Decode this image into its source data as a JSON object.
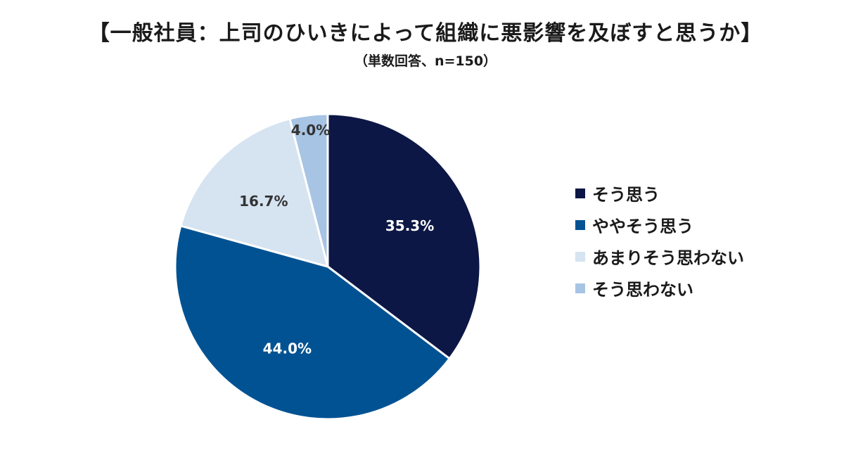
{
  "chart_data": {
    "type": "pie",
    "title": "【一般社員：上司のひいきによって組織に悪影響を及ぼすと思うか】",
    "subtitle": "（単数回答、n=150）",
    "categories": [
      "そう思う",
      "ややそう思う",
      "あまりそう思わない",
      "そう思わない"
    ],
    "values": [
      35.3,
      44.0,
      16.7,
      4.0
    ],
    "value_labels": [
      "35.3%",
      "44.0%",
      "16.7%",
      "4.0%"
    ],
    "colors": [
      "#0c1745",
      "#005293",
      "#d6e3f1",
      "#a7c4e4"
    ],
    "label_colors": [
      "#ffffff",
      "#ffffff",
      "#333333",
      "#333333"
    ],
    "start": "12 o'clock",
    "direction": "clockwise",
    "legend_position": "right"
  }
}
